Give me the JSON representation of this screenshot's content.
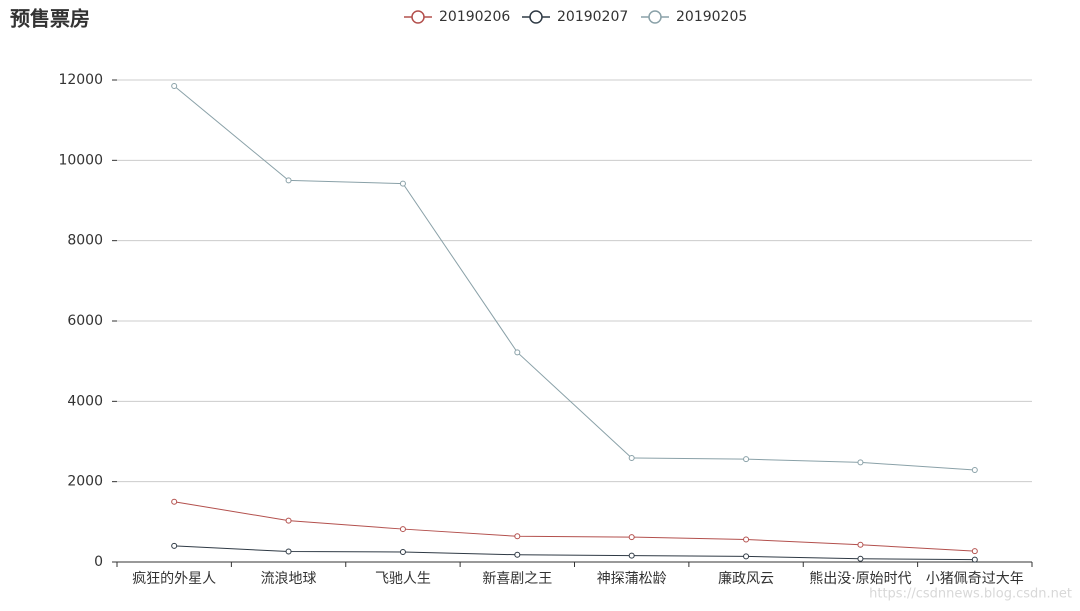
{
  "chart_data": {
    "type": "line",
    "title": "预售票房",
    "categories": [
      "疯狂的外星人",
      "流浪地球",
      "飞驰人生",
      "新喜剧之王",
      "神探蒲松龄",
      "廉政风云",
      "熊出没·原始时代",
      "小猪佩奇过大年"
    ],
    "series": [
      {
        "name": "20190206",
        "color": "#b3504d",
        "values": [
          1500,
          1030,
          820,
          640,
          620,
          560,
          430,
          270
        ]
      },
      {
        "name": "20190207",
        "color": "#2f3a45",
        "values": [
          400,
          260,
          250,
          180,
          160,
          140,
          80,
          60
        ]
      },
      {
        "name": "20190205",
        "color": "#8aa1a8",
        "values": [
          11850,
          9500,
          9420,
          5220,
          2590,
          2560,
          2480,
          2290
        ]
      }
    ],
    "ylim": [
      0,
      12000
    ],
    "yticks": [
      0,
      2000,
      4000,
      6000,
      8000,
      10000,
      12000
    ],
    "grid": true,
    "legend": "top"
  },
  "watermark": "https://csdnnews.blog.csdn.net"
}
